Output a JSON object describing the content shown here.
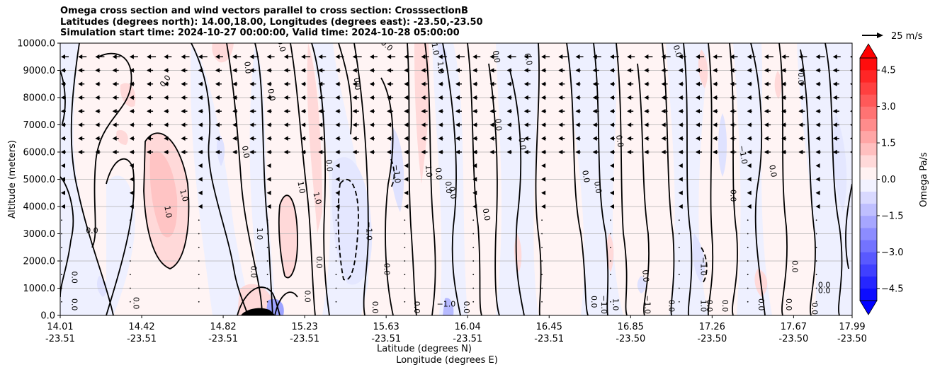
{
  "chart_data": {
    "type": "heatmap",
    "title_lines": [
      "Omega cross section and wind vectors parallel to cross section: CrosssectionB",
      "Latitudes (degrees north): 14.00,18.00, Longitudes (degrees east): -23.50,-23.50",
      "Simulation start time: 2024-10-27 00:00:00, Valid time: 2024-10-28 05:00:00"
    ],
    "ylabel": "Altitude (meters)",
    "xlabel_lines": [
      "Latitude (degrees N)",
      "Longitude (degrees E)"
    ],
    "ylim": [
      0,
      10000
    ],
    "y_ticks": [
      0,
      1000,
      2000,
      3000,
      4000,
      5000,
      6000,
      7000,
      8000,
      9000,
      10000
    ],
    "y_tick_labels": [
      "0.0",
      "1000.0",
      "2000.0",
      "3000.0",
      "4000.0",
      "5000.0",
      "6000.0",
      "7000.0",
      "8000.0",
      "9000.0",
      "10000.0"
    ],
    "x_ticks": [
      {
        "lat": "14.01",
        "lon": "-23.51",
        "pos": 0.0
      },
      {
        "lat": "14.42",
        "lon": "-23.51",
        "pos": 0.1029
      },
      {
        "lat": "14.82",
        "lon": "-23.51",
        "pos": 0.2058
      },
      {
        "lat": "15.23",
        "lon": "-23.51",
        "pos": 0.3087
      },
      {
        "lat": "15.63",
        "lon": "-23.51",
        "pos": 0.4116
      },
      {
        "lat": "16.04",
        "lon": "-23.51",
        "pos": 0.5145
      },
      {
        "lat": "16.45",
        "lon": "-23.51",
        "pos": 0.6174
      },
      {
        "lat": "16.85",
        "lon": "-23.50",
        "pos": 0.7203
      },
      {
        "lat": "17.26",
        "lon": "-23.50",
        "pos": 0.8232
      },
      {
        "lat": "17.67",
        "lon": "-23.50",
        "pos": 0.9261
      },
      {
        "lat": "17.99",
        "lon": "-23.50",
        "pos": 1.0
      }
    ],
    "grid": true,
    "colorbar": {
      "label": "Omega Pa/s",
      "min": -5.0,
      "max": 5.0,
      "step": 0.5,
      "ticks": [
        4.5,
        3.0,
        1.5,
        0.0,
        -1.5,
        -3.0,
        -4.5
      ],
      "tick_labels": [
        "4.5",
        "3.0",
        "1.5",
        "0.0",
        "−1.5",
        "−3.0",
        "−4.5"
      ],
      "colormap": "bwr",
      "extend": "both"
    },
    "quiver_key": {
      "label": "25 m/s",
      "speed_ms": 25
    },
    "vector_rows_m": [
      9500,
      9000,
      8500,
      8000,
      7500,
      7000,
      6500,
      6000,
      5500,
      5000,
      4500,
      4000,
      3500,
      3000,
      2500,
      2000,
      1500,
      1000,
      500
    ],
    "contour_levels": [
      -1.0,
      0.0,
      1.0
    ],
    "contour_labels": [
      {
        "text": "0.0",
        "lat": 14.54,
        "alt": 8600,
        "rot": -55
      },
      {
        "text": "1.0",
        "lat": 14.63,
        "alt": 4400,
        "rot": 75
      },
      {
        "text": "1.0",
        "lat": 14.55,
        "alt": 3800,
        "rot": 80
      },
      {
        "text": "0.0",
        "lat": 14.17,
        "alt": 3100,
        "rot": 0
      },
      {
        "text": "0.0",
        "lat": 14.08,
        "alt": 1400,
        "rot": 90
      },
      {
        "text": "0.0",
        "lat": 14.08,
        "alt": 400,
        "rot": 90
      },
      {
        "text": "0.0",
        "lat": 14.39,
        "alt": 450,
        "rot": 90
      },
      {
        "text": "0.0",
        "lat": 14.94,
        "alt": 6000,
        "rot": 80
      },
      {
        "text": "0.0",
        "lat": 14.95,
        "alt": 9100,
        "rot": 85
      },
      {
        "text": "0.0",
        "lat": 15.07,
        "alt": 8100,
        "rot": 80
      },
      {
        "text": "0.0",
        "lat": 15.12,
        "alt": 9900,
        "rot": 75
      },
      {
        "text": "1.0",
        "lat": 15.01,
        "alt": 3000,
        "rot": 90
      },
      {
        "text": "0.0",
        "lat": 14.98,
        "alt": 1600,
        "rot": 90
      },
      {
        "text": "1.0",
        "lat": 15.22,
        "alt": 4700,
        "rot": 80
      },
      {
        "text": "1.0",
        "lat": 15.3,
        "alt": 4300,
        "rot": 75
      },
      {
        "text": "0.0",
        "lat": 15.36,
        "alt": 5500,
        "rot": 85
      },
      {
        "text": "0.0",
        "lat": 15.31,
        "alt": 1950,
        "rot": 90
      },
      {
        "text": "0.0",
        "lat": 15.25,
        "alt": 700,
        "rot": 90
      },
      {
        "text": "0.0",
        "lat": 15.5,
        "alt": 8500,
        "rot": 85
      },
      {
        "text": "0.0",
        "lat": 15.65,
        "alt": 9900,
        "rot": 40
      },
      {
        "text": "−1.0",
        "lat": 15.56,
        "alt": 3100,
        "rot": 90
      },
      {
        "text": "−1.0",
        "lat": 15.7,
        "alt": 5200,
        "rot": 85
      },
      {
        "text": "0.0",
        "lat": 15.65,
        "alt": 1700,
        "rot": 90
      },
      {
        "text": "0.0",
        "lat": 15.59,
        "alt": 300,
        "rot": 90
      },
      {
        "text": "−1.0",
        "lat": 15.89,
        "alt": 9900,
        "rot": 80
      },
      {
        "text": "1.0",
        "lat": 15.92,
        "alt": 9100,
        "rot": 85
      },
      {
        "text": "1.0",
        "lat": 15.86,
        "alt": 5300,
        "rot": 85
      },
      {
        "text": "0.0",
        "lat": 15.91,
        "alt": 5200,
        "rot": 85
      },
      {
        "text": "0.0",
        "lat": 15.96,
        "alt": 4700,
        "rot": 85
      },
      {
        "text": "0.0",
        "lat": 15.98,
        "alt": 4500,
        "rot": 80
      },
      {
        "text": "0.0",
        "lat": 15.8,
        "alt": 300,
        "rot": 90
      },
      {
        "text": "−1.0",
        "lat": 15.95,
        "alt": 400,
        "rot": 0
      },
      {
        "text": "0.0",
        "lat": 16.05,
        "alt": 300,
        "rot": 90
      },
      {
        "text": "0.0",
        "lat": 16.2,
        "alt": 9500,
        "rot": 80
      },
      {
        "text": "0.0",
        "lat": 16.15,
        "alt": 3700,
        "rot": 80
      },
      {
        "text": "0.0",
        "lat": 16.21,
        "alt": 7000,
        "rot": 85
      },
      {
        "text": "0.0",
        "lat": 16.36,
        "alt": 9400,
        "rot": 75
      },
      {
        "text": "0.0",
        "lat": 16.33,
        "alt": 6300,
        "rot": 80
      },
      {
        "text": "0.0",
        "lat": 16.65,
        "alt": 5100,
        "rot": 80
      },
      {
        "text": "0.0",
        "lat": 16.71,
        "alt": 4700,
        "rot": 80
      },
      {
        "text": "0.0",
        "lat": 16.82,
        "alt": 6400,
        "rot": 80
      },
      {
        "text": "0.0",
        "lat": 16.69,
        "alt": 500,
        "rot": 90
      },
      {
        "text": "−1.0",
        "lat": 16.74,
        "alt": 400,
        "rot": 90
      },
      {
        "text": "1.0",
        "lat": 16.8,
        "alt": 400,
        "rot": 90
      },
      {
        "text": "−1.0",
        "lat": 16.96,
        "alt": 400,
        "rot": 90
      },
      {
        "text": "0.0",
        "lat": 16.95,
        "alt": 1450,
        "rot": 85
      },
      {
        "text": "0.0",
        "lat": 17.11,
        "alt": 9700,
        "rot": 75
      },
      {
        "text": "−1.0",
        "lat": 17.44,
        "alt": 5900,
        "rot": 80
      },
      {
        "text": "0.0",
        "lat": 17.59,
        "alt": 5300,
        "rot": 80
      },
      {
        "text": "0.0",
        "lat": 17.39,
        "alt": 4400,
        "rot": 90
      },
      {
        "text": "−1.0",
        "lat": 17.24,
        "alt": 1800,
        "rot": 90
      },
      {
        "text": "1.0",
        "lat": 17.24,
        "alt": 350,
        "rot": 90
      },
      {
        "text": "0.0",
        "lat": 17.08,
        "alt": 350,
        "rot": 90
      },
      {
        "text": "0.0",
        "lat": 17.35,
        "alt": 350,
        "rot": 90
      },
      {
        "text": "0.0",
        "lat": 17.27,
        "alt": 350,
        "rot": 90
      },
      {
        "text": "0.0",
        "lat": 17.53,
        "alt": 400,
        "rot": 90
      },
      {
        "text": "0.0",
        "lat": 17.73,
        "alt": 8700,
        "rot": 90
      },
      {
        "text": "0.0",
        "lat": 17.7,
        "alt": 1800,
        "rot": 90
      },
      {
        "text": "0.0",
        "lat": 17.85,
        "alt": 900,
        "rot": 0
      },
      {
        "text": "0.0",
        "lat": 17.85,
        "alt": 1100,
        "rot": 0
      },
      {
        "text": "0.0",
        "lat": 17.67,
        "alt": 400,
        "rot": 90
      },
      {
        "text": "0.0",
        "lat": 17.8,
        "alt": 250,
        "rot": 90
      }
    ],
    "colors": {
      "strong_positive": "#ff0000",
      "strong_negative": "#0000ff",
      "neutral": "#ffffff",
      "contour": "#000000",
      "grid": "#b0b0b0"
    }
  }
}
